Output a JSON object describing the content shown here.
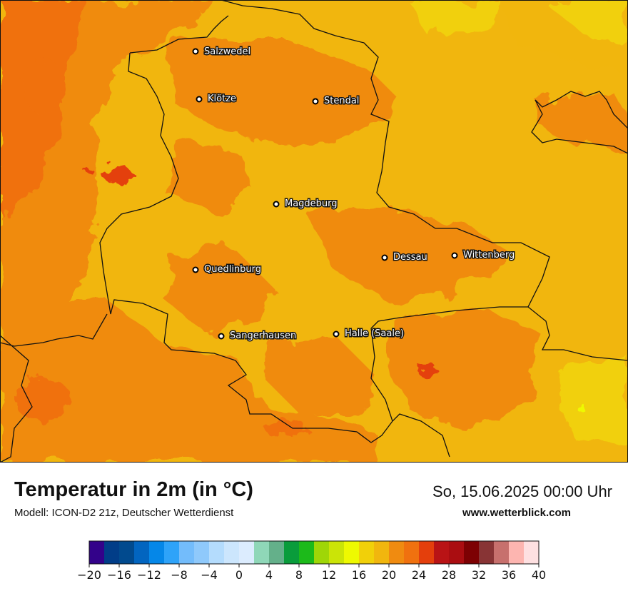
{
  "map": {
    "base_color": "#f1b60e",
    "border_color": "#111111",
    "cities": [
      {
        "name": "Salzwedel"
      },
      {
        "name": "Klötze"
      },
      {
        "name": "Stendal"
      },
      {
        "name": "Magdeburg"
      },
      {
        "name": "Dessau"
      },
      {
        "name": "Wittenberg"
      },
      {
        "name": "Quedlinburg"
      },
      {
        "name": "Sangerhausen"
      },
      {
        "name": "Halle (Saale)"
      }
    ]
  },
  "header": {
    "title": "Temperatur in 2m (in °C)",
    "subtitle": "Modell: ICON-D2 21z, Deutscher Wetterdienst",
    "date": "So, 15.06.2025 00:00 Uhr",
    "website": "www.wetterblick.com"
  },
  "legend": {
    "ticks": [
      "−20",
      "−16",
      "−12",
      "−8",
      "−4",
      "0",
      "4",
      "8",
      "12",
      "16",
      "20",
      "24",
      "28",
      "32",
      "36",
      "40"
    ],
    "colors": [
      "#33028a",
      "#013d88",
      "#014a8e",
      "#0265c0",
      "#0587e8",
      "#2ea3f9",
      "#73bcfb",
      "#8fc9fb",
      "#b4dcfd",
      "#cce6fd",
      "#dcecfe",
      "#8fd7b8",
      "#64b08a",
      "#099c3b",
      "#1cba1a",
      "#9fd607",
      "#cbe407",
      "#eef901",
      "#f1d009",
      "#f1b60e",
      "#f08b10",
      "#f0710f",
      "#e43f0c",
      "#b91315",
      "#aa0d11",
      "#7d0103",
      "#883435",
      "#c7706d",
      "#fdb5b0",
      "#fee0e1"
    ]
  }
}
